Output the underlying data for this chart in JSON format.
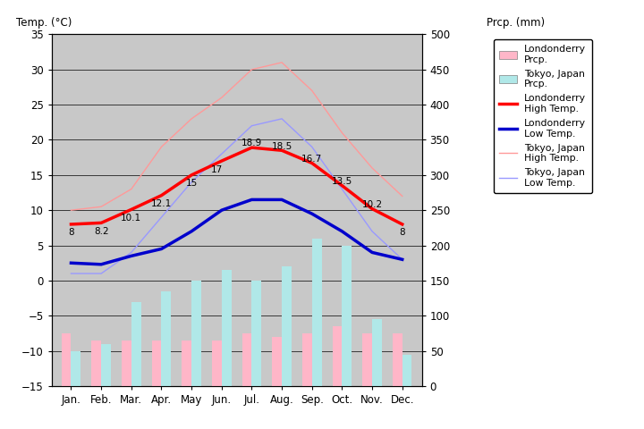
{
  "months": [
    "Jan.",
    "Feb.",
    "Mar.",
    "Apr.",
    "May",
    "Jun.",
    "Jul.",
    "Aug.",
    "Sep.",
    "Oct.",
    "Nov.",
    "Dec."
  ],
  "month_indices": [
    0,
    1,
    2,
    3,
    4,
    5,
    6,
    7,
    8,
    9,
    10,
    11
  ],
  "londonderry_high": [
    8,
    8.2,
    10.1,
    12.1,
    15,
    17,
    18.9,
    18.5,
    16.7,
    13.5,
    10.2,
    8
  ],
  "londonderry_low": [
    2.5,
    2.3,
    3.5,
    4.5,
    7,
    10,
    11.5,
    11.5,
    9.5,
    7,
    4,
    3
  ],
  "tokyo_high": [
    10,
    10.5,
    13,
    19,
    23,
    26,
    30,
    31,
    27,
    21,
    16,
    12
  ],
  "tokyo_low": [
    1,
    1,
    4,
    9,
    14,
    18,
    22,
    23,
    19,
    13,
    7,
    3
  ],
  "londonderry_prcp_mm": [
    75,
    65,
    65,
    65,
    65,
    65,
    75,
    70,
    75,
    85,
    75,
    75
  ],
  "tokyo_prcp_mm": [
    50,
    60,
    120,
    135,
    150,
    165,
    150,
    170,
    210,
    200,
    95,
    45
  ],
  "high_labels": [
    "8",
    "8.2",
    "10.1",
    "12.1",
    "15",
    "17",
    "18.9",
    "18.5",
    "16.7",
    "13.5",
    "10.2",
    "8"
  ],
  "high_label_offsets_x": [
    0,
    0,
    0,
    0,
    0,
    -0.15,
    0,
    0,
    0,
    0,
    0,
    0
  ],
  "high_label_offsets_y": [
    -1.2,
    -1.2,
    -1.2,
    -1.2,
    -1.2,
    -1.2,
    0.6,
    0.6,
    0.6,
    0.6,
    0.6,
    -1.2
  ],
  "temp_ylim": [
    -15,
    35
  ],
  "prcp_ylim": [
    0,
    500
  ],
  "plot_bg_color": "#c8c8c8",
  "londonderry_high_color": "#ff0000",
  "londonderry_low_color": "#0000cc",
  "tokyo_high_color": "#ff9999",
  "tokyo_low_color": "#9999ff",
  "londonderry_prcp_color": "#ffb6c8",
  "tokyo_prcp_color": "#b0e8e8",
  "title_left": "Temp. (°C)",
  "title_right": "Prcp. (mm)"
}
